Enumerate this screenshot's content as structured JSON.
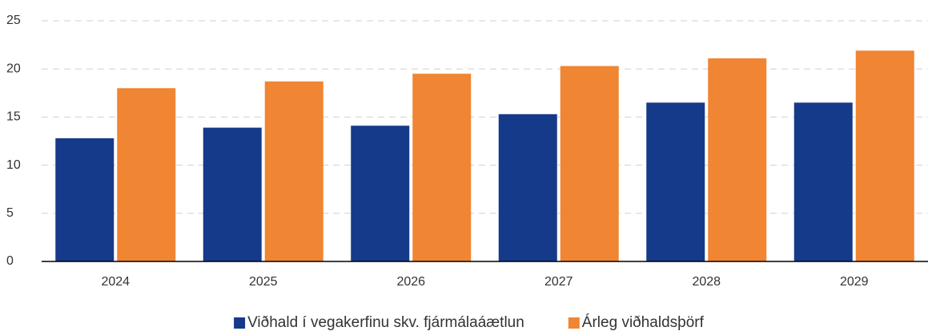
{
  "chart_data": {
    "type": "bar",
    "categories": [
      "2024",
      "2025",
      "2026",
      "2027",
      "2028",
      "2029"
    ],
    "series": [
      {
        "name": "Viðhald í vegakerfinu skv. fjármálaáætlun",
        "color": "#153a8a",
        "values": [
          12.8,
          13.9,
          14.1,
          15.3,
          16.5,
          16.5
        ]
      },
      {
        "name": "Árleg viðhaldsþörf",
        "color": "#f08533",
        "values": [
          18.0,
          18.7,
          19.5,
          20.3,
          21.1,
          21.9
        ]
      }
    ],
    "ylim": [
      0,
      25
    ],
    "yticks": [
      0,
      5,
      10,
      15,
      20,
      25
    ],
    "grid": true,
    "legend": "bottom"
  }
}
